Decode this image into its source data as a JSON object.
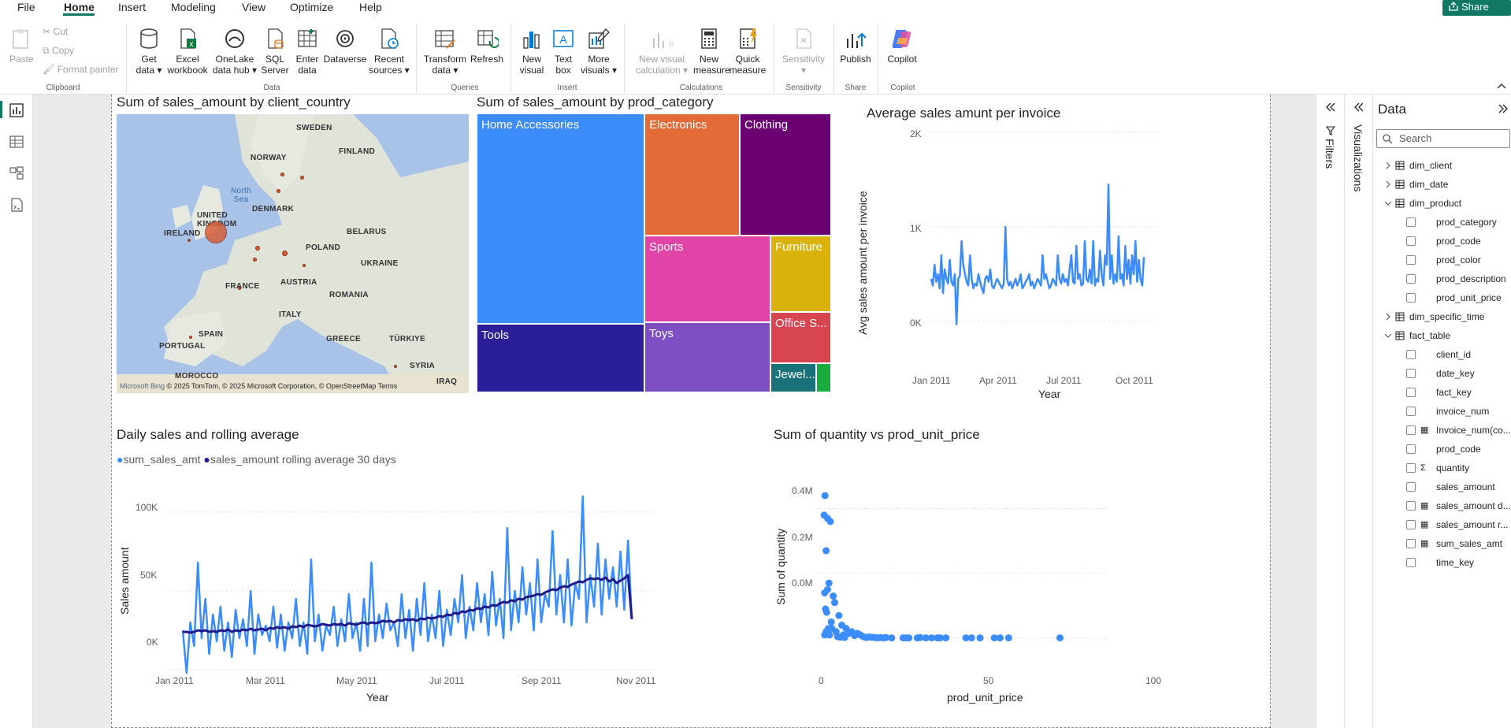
{
  "menu": {
    "tabs": [
      "File",
      "Home",
      "Insert",
      "Modeling",
      "View",
      "Optimize",
      "Help"
    ],
    "share": "Share"
  },
  "ribbon": {
    "clipboard": {
      "paste": "Paste",
      "cut": "Cut",
      "copy": "Copy",
      "format_painter": "Format painter",
      "group": "Clipboard"
    },
    "data": {
      "get_data": "Get data",
      "excel": "Excel workbook",
      "onelake": "OneLake data hub",
      "sql": "SQL Server",
      "enter": "Enter data",
      "dataverse": "Dataverse",
      "recent": "Recent sources",
      "group": "Data"
    },
    "queries": {
      "transform": "Transform data",
      "refresh": "Refresh",
      "group": "Queries"
    },
    "insert": {
      "new_visual": "New visual",
      "text_box": "Text box",
      "more_visuals": "More visuals",
      "group": "Insert"
    },
    "calculations": {
      "new_visual_calc": "New visual calculation",
      "new_measure": "New measure",
      "quick_measure": "Quick measure",
      "group": "Calculations"
    },
    "sensitivity": {
      "label": "Sensitivity",
      "group": "Sensitivity"
    },
    "share": {
      "publish": "Publish",
      "group": "Share"
    },
    "copilot": {
      "label": "Copilot",
      "group": "Copilot"
    }
  },
  "visuals": {
    "map": {
      "title": "Sum of sales_amount by client_country",
      "labels": [
        "SWEDEN",
        "NORWAY",
        "FINLAND",
        "North Sea",
        "DENMARK",
        "UNITED KINGDOM",
        "IRELAND",
        "BELARUS",
        "POLAND",
        "UKRAINE",
        "FRANCE",
        "AUSTRIA",
        "ROMANIA",
        "ITALY",
        "GREECE",
        "TÜRKIYE",
        "SPAIN",
        "PORTUGAL",
        "SYRIA",
        "MOROCCO",
        "IRAQ"
      ],
      "credit": "© 2025 TomTom, © 2025 Microsoft Corporation, © OpenStreetMap  Terms",
      "bing": "Microsoft Bing"
    },
    "treemap": {
      "title": "Sum of sales_amount by prod_category",
      "tiles": [
        "Home Accessories",
        "Electronics",
        "Clothing",
        "Sports",
        "Furniture",
        "Tools",
        "Toys",
        "Office S...",
        "Jewel..."
      ]
    },
    "line_avg": {
      "title": "Average sales amunt per invoice",
      "ylabel": "Avg sales amount per invoice",
      "xlabel": "Year",
      "yticks": [
        "2K",
        "1K",
        "0K"
      ],
      "xticks": [
        "Jan 2011",
        "Apr 2011",
        "Jul 2011",
        "Oct 2011"
      ]
    },
    "daily": {
      "title": "Daily sales and rolling average",
      "legend": [
        "sum_sales_amt",
        "sales_amount rolling average 30 days"
      ],
      "ylabel": "Sales amount",
      "xlabel": "Year",
      "yticks": [
        "100K",
        "50K",
        "0K"
      ],
      "xticks": [
        "Jan 2011",
        "Mar 2011",
        "May 2011",
        "Jul 2011",
        "Sep 2011",
        "Nov 2011"
      ]
    },
    "scatter": {
      "title": "Sum of quantity vs prod_unit_price",
      "ylabel": "Sum of quantity",
      "xlabel": "prod_unit_price",
      "yticks": [
        "0.4M",
        "0.2M",
        "0.0M"
      ],
      "xticks": [
        "0",
        "50",
        "100"
      ]
    }
  },
  "chart_data": [
    {
      "type": "treemap",
      "categories": [
        "Home Accessories",
        "Electronics",
        "Clothing",
        "Sports",
        "Furniture",
        "Tools",
        "Toys",
        "Office S...",
        "Jewel..."
      ],
      "colors": [
        "#3c8dfb",
        "#e26b37",
        "#6b0073",
        "#e044a7",
        "#d9b20b",
        "#2a1f99",
        "#7e4fc3",
        "#d64550",
        "#197278"
      ]
    },
    {
      "type": "line",
      "title": "Average sales amunt per invoice",
      "xlabel": "Year",
      "ylabel": "Avg sales amount per invoice",
      "ylim": [
        -100,
        2000
      ],
      "x_range": [
        "2011-01-01",
        "2011-12-31"
      ],
      "values": [
        450,
        380,
        600,
        420,
        500,
        350,
        700,
        300,
        550,
        450,
        400,
        650,
        420,
        380,
        500,
        -30,
        450,
        480,
        850,
        600,
        500,
        420,
        380,
        700,
        450,
        350,
        400,
        380,
        500,
        420,
        350,
        300,
        450,
        480,
        420,
        550,
        380,
        350,
        400,
        450,
        420,
        380,
        350,
        400,
        1000,
        450,
        380,
        420,
        350,
        400,
        450,
        380,
        420,
        500,
        350,
        380,
        420,
        450,
        500,
        380,
        420,
        350,
        400,
        450,
        420,
        380,
        700,
        450,
        500,
        420,
        350,
        380,
        450,
        420,
        380,
        700,
        450,
        400,
        500,
        420,
        450,
        380,
        550,
        700,
        420,
        400,
        800,
        450,
        500,
        380,
        400,
        850,
        450,
        420,
        550,
        400,
        850,
        380,
        450,
        420,
        750,
        500,
        380,
        700,
        600,
        1450,
        450,
        700,
        400,
        500,
        420,
        900,
        450,
        500,
        380,
        800,
        450,
        650,
        400,
        700,
        500,
        850,
        420,
        650,
        450,
        380,
        680
      ],
      "color": "#3c8dfb"
    },
    {
      "type": "line",
      "title": "Daily sales and rolling average",
      "xlabel": "Year",
      "ylabel": "Sales amount",
      "ylim": [
        -5000,
        110000
      ],
      "x_range": [
        "2011-01-01",
        "2011-12-31"
      ],
      "series": [
        {
          "name": "sum_sales_amt",
          "color": "#3c8dfb",
          "values": [
            25000,
            -2000,
            30000,
            15000,
            68000,
            20000,
            45000,
            10000,
            35000,
            18000,
            40000,
            12000,
            30000,
            8000,
            38000,
            20000,
            32000,
            15000,
            50000,
            10000,
            35000,
            22000,
            28000,
            18000,
            40000,
            14000,
            35000,
            12000,
            30000,
            20000,
            45000,
            15000,
            30000,
            10000,
            70000,
            18000,
            35000,
            12000,
            28000,
            22000,
            40000,
            15000,
            32000,
            18000,
            48000,
            20000,
            30000,
            12000,
            45000,
            15000,
            68000,
            18000,
            35000,
            20000,
            42000,
            25000,
            30000,
            15000,
            48000,
            20000,
            38000,
            12000,
            45000,
            22000,
            55000,
            18000,
            35000,
            20000,
            50000,
            15000,
            38000,
            22000,
            45000,
            30000,
            60000,
            20000,
            40000,
            25000,
            55000,
            30000,
            48000,
            22000,
            62000,
            28000,
            45000,
            20000,
            90000,
            25000,
            50000,
            30000,
            65000,
            35000,
            55000,
            25000,
            70000,
            30000,
            48000,
            40000,
            88000,
            35000,
            60000,
            30000,
            70000,
            28000,
            55000,
            45000,
            110000,
            30000,
            60000,
            40000,
            80000,
            35000,
            70000,
            45000,
            65000,
            40000,
            75000,
            38000,
            82000,
            32000
          ]
        },
        {
          "name": "sales_amount rolling average 30 days",
          "color": "#1f1a8a",
          "values": [
            24000,
            24000,
            23500,
            24000,
            25000,
            24500,
            25000,
            24000,
            24500,
            24000,
            25000,
            24500,
            25500,
            24000,
            25000,
            24500,
            25500,
            25000,
            26000,
            25000,
            25500,
            26000,
            25000,
            26500,
            26000,
            27000,
            26500,
            27000,
            26000,
            27500,
            27000,
            28000,
            27000,
            28500,
            28000,
            27500,
            28000,
            29000,
            28500,
            28000,
            29000,
            28500,
            29000,
            28000,
            29500,
            29000,
            28500,
            29500,
            30000,
            29000,
            30000,
            29500,
            30000,
            31000,
            30500,
            31000,
            30000,
            31500,
            31000,
            32000,
            31500,
            32000,
            31000,
            32500,
            32000,
            33000,
            32500,
            33000,
            34000,
            33500,
            35000,
            34500,
            36000,
            35500,
            37000,
            36500,
            38000,
            37500,
            39000,
            38500,
            40000,
            39500,
            41000,
            40500,
            42000,
            43000,
            42500,
            44000,
            43500,
            45000,
            44500,
            46000,
            46500,
            47000,
            48000,
            47500,
            49000,
            50000,
            51000,
            50500,
            52000,
            53000,
            52500,
            54000,
            55000,
            56000,
            55500,
            57000,
            58000,
            57500,
            58000,
            57000,
            58500,
            56000,
            57500,
            55000,
            56500,
            58000,
            60000,
            32000
          ]
        }
      ]
    },
    {
      "type": "scatter",
      "title": "Sum of quantity vs prod_unit_price",
      "xlabel": "prod_unit_price",
      "ylabel": "Sum of quantity",
      "xlim": [
        0,
        100
      ],
      "ylim": [
        0,
        0.45
      ],
      "points": [
        [
          0.3,
          0.38
        ],
        [
          0.6,
          0.44
        ],
        [
          1.5,
          0.37
        ],
        [
          2.5,
          0.36
        ],
        [
          1.0,
          0.27
        ],
        [
          1.5,
          0.15
        ],
        [
          0.5,
          0.14
        ],
        [
          2.0,
          0.17
        ],
        [
          3.5,
          0.13
        ],
        [
          4.0,
          0.11
        ],
        [
          0.8,
          0.09
        ],
        [
          1.2,
          0.08
        ],
        [
          2.8,
          0.05
        ],
        [
          5.5,
          0.07
        ],
        [
          6.5,
          0.04
        ],
        [
          8,
          0.03
        ],
        [
          10,
          0.02
        ],
        [
          12,
          0.015
        ],
        [
          3,
          0.03
        ],
        [
          4.5,
          0.02
        ],
        [
          7,
          0.01
        ],
        [
          9,
          0.015
        ],
        [
          11,
          0.008
        ],
        [
          13,
          0.01
        ],
        [
          14,
          0.005
        ],
        [
          15,
          0.002
        ],
        [
          16,
          0.004
        ],
        [
          17,
          0.003
        ],
        [
          18,
          0.002
        ],
        [
          19,
          0.001
        ],
        [
          20,
          0.002
        ],
        [
          21,
          0.001
        ],
        [
          22,
          0.002
        ],
        [
          24,
          0.001
        ],
        [
          28,
          0.001
        ],
        [
          29,
          0.001
        ],
        [
          30,
          0.001
        ],
        [
          33,
          0.001
        ],
        [
          34,
          0.002
        ],
        [
          36,
          0.001
        ],
        [
          38,
          0.001
        ],
        [
          40,
          0.001
        ],
        [
          41,
          0.001
        ],
        [
          43,
          0.001
        ],
        [
          50,
          0.001
        ],
        [
          52,
          0.001
        ],
        [
          55,
          0.001
        ],
        [
          60,
          0.001
        ],
        [
          62,
          0.001
        ],
        [
          65,
          0.001
        ],
        [
          83,
          0.001
        ],
        [
          0.5,
          0.01
        ],
        [
          1,
          0.02
        ],
        [
          1.8,
          0.03
        ],
        [
          2.2,
          0.01
        ],
        [
          5,
          0.005
        ],
        [
          6,
          0.003
        ],
        [
          7.5,
          0.002
        ]
      ],
      "color": "#3c8dfb"
    }
  ],
  "panes": {
    "filters": "Filters",
    "visualizations": "Visualizations",
    "data": {
      "title": "Data",
      "search_placeholder": "Search",
      "tree": [
        {
          "label": "dim_client",
          "level": 0,
          "expanded": false
        },
        {
          "label": "dim_date",
          "level": 0,
          "expanded": false
        },
        {
          "label": "dim_product",
          "level": 0,
          "expanded": true
        },
        {
          "label": "prod_category",
          "level": 1
        },
        {
          "label": "prod_code",
          "level": 1
        },
        {
          "label": "prod_color",
          "level": 1
        },
        {
          "label": "prod_description",
          "level": 1
        },
        {
          "label": "prod_unit_price",
          "level": 1
        },
        {
          "label": "dim_specific_time",
          "level": 0,
          "expanded": false
        },
        {
          "label": "fact_table",
          "level": 0,
          "expanded": true
        },
        {
          "label": "client_id",
          "level": 1
        },
        {
          "label": "date_key",
          "level": 1
        },
        {
          "label": "fact_key",
          "level": 1
        },
        {
          "label": "invoice_num",
          "level": 1
        },
        {
          "label": "Invoice_num(co...",
          "level": 1,
          "icon": "calc"
        },
        {
          "label": "prod_code",
          "level": 1
        },
        {
          "label": "quantity",
          "level": 1,
          "icon": "sigma"
        },
        {
          "label": "sales_amount",
          "level": 1
        },
        {
          "label": "sales_amount d...",
          "level": 1,
          "icon": "calc"
        },
        {
          "label": "sales_amount r...",
          "level": 1,
          "icon": "calc"
        },
        {
          "label": "sum_sales_amt",
          "level": 1,
          "icon": "calc"
        },
        {
          "label": "time_key",
          "level": 1
        }
      ]
    }
  }
}
